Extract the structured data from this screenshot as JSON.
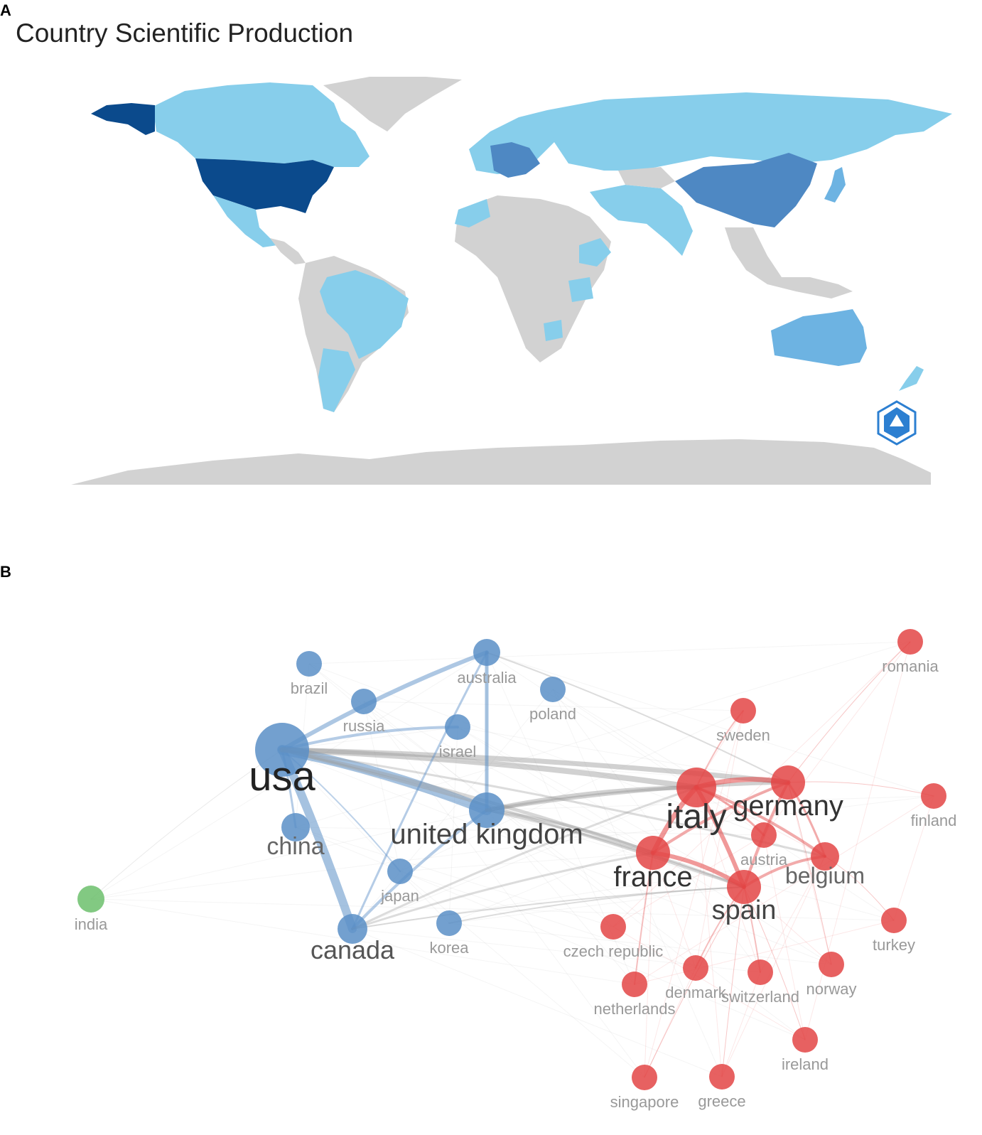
{
  "panels": {
    "a": "A",
    "b": "B"
  },
  "map": {
    "title": "Country Scientific Production",
    "colors": {
      "none": "#d2d2d2",
      "low": "#87ceeb",
      "mid_low": "#6db3e2",
      "mid": "#4e88c3",
      "high": "#0b4a8c"
    },
    "logo_icon": "bibliometrix-logo-icon"
  },
  "network": {
    "colors": {
      "blue": "#5b8fc7",
      "red": "#e34545",
      "green": "#6cc06c",
      "gray_edge": "#9a9a9a"
    },
    "nodes": [
      {
        "id": "usa",
        "label": "usa",
        "cluster": "blue"
      },
      {
        "id": "australia",
        "label": "australia",
        "cluster": "blue"
      },
      {
        "id": "brazil",
        "label": "brazil",
        "cluster": "blue"
      },
      {
        "id": "russia",
        "label": "russia",
        "cluster": "blue"
      },
      {
        "id": "poland",
        "label": "poland",
        "cluster": "blue"
      },
      {
        "id": "israel",
        "label": "israel",
        "cluster": "blue"
      },
      {
        "id": "united_kingdom",
        "label": "united kingdom",
        "cluster": "blue"
      },
      {
        "id": "china",
        "label": "china",
        "cluster": "blue"
      },
      {
        "id": "japan",
        "label": "japan",
        "cluster": "blue"
      },
      {
        "id": "canada",
        "label": "canada",
        "cluster": "blue"
      },
      {
        "id": "korea",
        "label": "korea",
        "cluster": "blue"
      },
      {
        "id": "india",
        "label": "india",
        "cluster": "green"
      },
      {
        "id": "romania",
        "label": "romania",
        "cluster": "red"
      },
      {
        "id": "sweden",
        "label": "sweden",
        "cluster": "red"
      },
      {
        "id": "italy",
        "label": "italy",
        "cluster": "red"
      },
      {
        "id": "germany",
        "label": "germany",
        "cluster": "red"
      },
      {
        "id": "finland",
        "label": "finland",
        "cluster": "red"
      },
      {
        "id": "austria",
        "label": "austria",
        "cluster": "red"
      },
      {
        "id": "france",
        "label": "france",
        "cluster": "red"
      },
      {
        "id": "belgium",
        "label": "belgium",
        "cluster": "red"
      },
      {
        "id": "spain",
        "label": "spain",
        "cluster": "red"
      },
      {
        "id": "turkey",
        "label": "turkey",
        "cluster": "red"
      },
      {
        "id": "czech_republic",
        "label": "czech republic",
        "cluster": "red"
      },
      {
        "id": "denmark",
        "label": "denmark",
        "cluster": "red"
      },
      {
        "id": "switzerland",
        "label": "switzerland",
        "cluster": "red"
      },
      {
        "id": "norway",
        "label": "norway",
        "cluster": "red"
      },
      {
        "id": "netherlands",
        "label": "netherlands",
        "cluster": "red"
      },
      {
        "id": "ireland",
        "label": "ireland",
        "cluster": "red"
      },
      {
        "id": "singapore",
        "label": "singapore",
        "cluster": "red"
      },
      {
        "id": "greece",
        "label": "greece",
        "cluster": "red"
      }
    ]
  }
}
